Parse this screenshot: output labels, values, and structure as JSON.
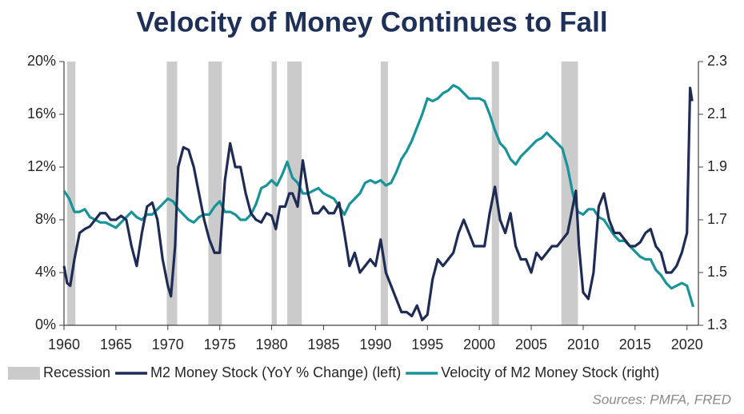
{
  "chart_data": {
    "type": "line",
    "title": "Velocity of Money Continues to Fall",
    "source": "Sources: PMFA, FRED",
    "xlim": [
      1960,
      2021.1
    ],
    "xticks": [
      1960,
      1965,
      1970,
      1975,
      1980,
      1985,
      1990,
      1995,
      2000,
      2005,
      2010,
      2015,
      2020
    ],
    "ylim": [
      0,
      20
    ],
    "yticks": [
      {
        "value": 0,
        "label": "0%"
      },
      {
        "value": 4,
        "label": "4%"
      },
      {
        "value": 8,
        "label": "8%"
      },
      {
        "value": 12,
        "label": "12%"
      },
      {
        "value": 16,
        "label": "16%"
      },
      {
        "value": 20,
        "label": "20%"
      }
    ],
    "y2lim": [
      1.3,
      2.3
    ],
    "y2ticks": [
      1.3,
      1.5,
      1.7,
      1.9,
      2.1,
      2.3
    ],
    "recessions": {
      "name": "Recession",
      "color": "#cbcbcb",
      "periods": [
        [
          1960.3,
          1961.1
        ],
        [
          1969.9,
          1970.9
        ],
        [
          1973.9,
          1975.2
        ],
        [
          1980.0,
          1980.5
        ],
        [
          1981.5,
          1982.9
        ],
        [
          1990.5,
          1991.2
        ],
        [
          2001.2,
          2001.9
        ],
        [
          2007.9,
          2009.5
        ]
      ]
    },
    "series": [
      {
        "name": "M2 Money Stock (YoY % Change) (left)",
        "color": "#1e2c55",
        "axis": "y",
        "x": [
          1960.0,
          1960.3,
          1960.6,
          1961.0,
          1961.5,
          1962.0,
          1962.5,
          1963.0,
          1963.5,
          1964.0,
          1964.5,
          1965.0,
          1965.5,
          1966.0,
          1966.5,
          1967.0,
          1967.5,
          1968.0,
          1968.5,
          1969.0,
          1969.5,
          1970.0,
          1970.3,
          1970.7,
          1971.0,
          1971.5,
          1972.0,
          1972.5,
          1973.0,
          1973.5,
          1974.0,
          1974.5,
          1975.0,
          1975.5,
          1976.0,
          1976.5,
          1977.0,
          1977.5,
          1978.0,
          1978.5,
          1979.0,
          1979.5,
          1980.0,
          1980.4,
          1980.8,
          1981.3,
          1981.7,
          1982.0,
          1982.5,
          1983.0,
          1983.5,
          1984.0,
          1984.5,
          1985.0,
          1985.5,
          1986.0,
          1986.5,
          1987.0,
          1987.5,
          1988.0,
          1988.5,
          1989.0,
          1989.5,
          1990.0,
          1990.5,
          1991.0,
          1991.5,
          1992.0,
          1992.5,
          1993.0,
          1993.5,
          1994.0,
          1994.5,
          1995.0,
          1995.5,
          1996.0,
          1996.5,
          1997.0,
          1997.5,
          1998.0,
          1998.5,
          1999.0,
          1999.5,
          2000.0,
          2000.5,
          2001.0,
          2001.5,
          2002.0,
          2002.5,
          2003.0,
          2003.5,
          2004.0,
          2004.5,
          2005.0,
          2005.5,
          2006.0,
          2006.5,
          2007.0,
          2007.5,
          2008.0,
          2008.5,
          2009.0,
          2009.3,
          2009.6,
          2010.0,
          2010.5,
          2011.0,
          2011.5,
          2012.0,
          2012.5,
          2013.0,
          2013.5,
          2014.0,
          2014.5,
          2015.0,
          2015.5,
          2016.0,
          2016.5,
          2017.0,
          2017.5,
          2018.0,
          2018.5,
          2019.0,
          2019.5,
          2020.0,
          2020.3,
          2020.5
        ],
        "values": [
          4.5,
          3.2,
          3.0,
          5,
          7,
          7.3,
          7.5,
          8,
          8.5,
          8.5,
          8.0,
          8,
          8.3,
          8,
          6,
          4.5,
          7,
          9,
          9.3,
          8,
          5,
          3,
          2.2,
          6,
          12,
          13.5,
          13.3,
          12,
          10,
          8,
          6.5,
          5.5,
          5.5,
          11,
          13.8,
          12,
          12,
          10,
          8.5,
          8,
          7.8,
          8.5,
          8.3,
          7.3,
          9,
          9,
          10,
          10,
          9,
          12.5,
          10,
          8.5,
          8.5,
          9,
          8.5,
          8.5,
          9.3,
          7,
          4.5,
          5.5,
          4,
          4.5,
          5,
          4.5,
          6.5,
          4,
          3,
          2,
          1,
          1,
          0.7,
          1.5,
          0.4,
          0.8,
          3.5,
          5,
          4.5,
          5,
          5.5,
          7,
          8,
          7,
          6,
          6,
          6,
          8.5,
          10.5,
          8,
          7,
          8.5,
          6,
          5,
          5,
          4,
          5.5,
          5,
          5.5,
          6,
          6,
          6.5,
          7,
          9,
          10.2,
          6,
          2.5,
          2,
          4,
          9,
          10,
          8,
          7,
          7,
          6.5,
          6,
          6,
          6.3,
          7,
          7.3,
          6,
          5.5,
          4,
          4,
          4.5,
          5.5,
          7,
          18,
          17
        ]
      },
      {
        "name": "Velocity of M2 Money Stock (right)",
        "color": "#17939a",
        "axis": "y2",
        "x": [
          1960.0,
          1960.5,
          1961.0,
          1961.5,
          1962.0,
          1962.5,
          1963.0,
          1963.5,
          1964.0,
          1964.5,
          1965.0,
          1965.5,
          1966.0,
          1966.5,
          1967.0,
          1967.5,
          1968.0,
          1968.5,
          1969.0,
          1969.5,
          1970.0,
          1970.5,
          1971.0,
          1971.5,
          1972.0,
          1972.5,
          1973.0,
          1973.5,
          1974.0,
          1974.5,
          1975.0,
          1975.5,
          1976.0,
          1976.5,
          1977.0,
          1977.5,
          1978.0,
          1978.5,
          1979.0,
          1979.5,
          1980.0,
          1980.5,
          1981.0,
          1981.5,
          1982.0,
          1982.5,
          1983.0,
          1983.5,
          1984.0,
          1984.5,
          1985.0,
          1985.5,
          1986.0,
          1986.5,
          1987.0,
          1987.5,
          1988.0,
          1988.5,
          1989.0,
          1989.5,
          1990.0,
          1990.5,
          1991.0,
          1991.5,
          1992.0,
          1992.5,
          1993.0,
          1993.5,
          1994.0,
          1994.5,
          1995.0,
          1995.5,
          1996.0,
          1996.5,
          1997.0,
          1997.5,
          1998.0,
          1998.5,
          1999.0,
          1999.5,
          2000.0,
          2000.5,
          2001.0,
          2001.5,
          2002.0,
          2002.5,
          2003.0,
          2003.5,
          2004.0,
          2004.5,
          2005.0,
          2005.5,
          2006.0,
          2006.5,
          2007.0,
          2007.5,
          2008.0,
          2008.5,
          2009.0,
          2009.5,
          2010.0,
          2010.5,
          2011.0,
          2011.5,
          2012.0,
          2012.5,
          2013.0,
          2013.5,
          2014.0,
          2014.5,
          2015.0,
          2015.5,
          2016.0,
          2016.5,
          2017.0,
          2017.5,
          2018.0,
          2018.5,
          2019.0,
          2019.5,
          2020.0,
          2020.3,
          2020.6
        ],
        "values": [
          1.81,
          1.78,
          1.73,
          1.73,
          1.74,
          1.71,
          1.7,
          1.69,
          1.69,
          1.68,
          1.67,
          1.69,
          1.71,
          1.73,
          1.71,
          1.7,
          1.72,
          1.72,
          1.74,
          1.76,
          1.78,
          1.77,
          1.74,
          1.72,
          1.7,
          1.69,
          1.71,
          1.72,
          1.72,
          1.75,
          1.77,
          1.73,
          1.73,
          1.72,
          1.7,
          1.7,
          1.72,
          1.76,
          1.82,
          1.83,
          1.85,
          1.83,
          1.87,
          1.92,
          1.86,
          1.84,
          1.8,
          1.8,
          1.81,
          1.82,
          1.8,
          1.79,
          1.78,
          1.75,
          1.72,
          1.76,
          1.78,
          1.8,
          1.84,
          1.85,
          1.84,
          1.85,
          1.83,
          1.84,
          1.88,
          1.93,
          1.96,
          2.0,
          2.05,
          2.1,
          2.16,
          2.15,
          2.16,
          2.18,
          2.19,
          2.21,
          2.2,
          2.18,
          2.16,
          2.16,
          2.16,
          2.15,
          2.1,
          2.04,
          1.99,
          1.97,
          1.93,
          1.91,
          1.94,
          1.96,
          1.98,
          2.0,
          2.01,
          2.03,
          2.01,
          1.99,
          1.97,
          1.9,
          1.8,
          1.73,
          1.72,
          1.74,
          1.74,
          1.71,
          1.7,
          1.67,
          1.64,
          1.62,
          1.62,
          1.6,
          1.58,
          1.56,
          1.55,
          1.55,
          1.51,
          1.49,
          1.46,
          1.44,
          1.45,
          1.46,
          1.45,
          1.41,
          1.37
        ]
      }
    ]
  }
}
